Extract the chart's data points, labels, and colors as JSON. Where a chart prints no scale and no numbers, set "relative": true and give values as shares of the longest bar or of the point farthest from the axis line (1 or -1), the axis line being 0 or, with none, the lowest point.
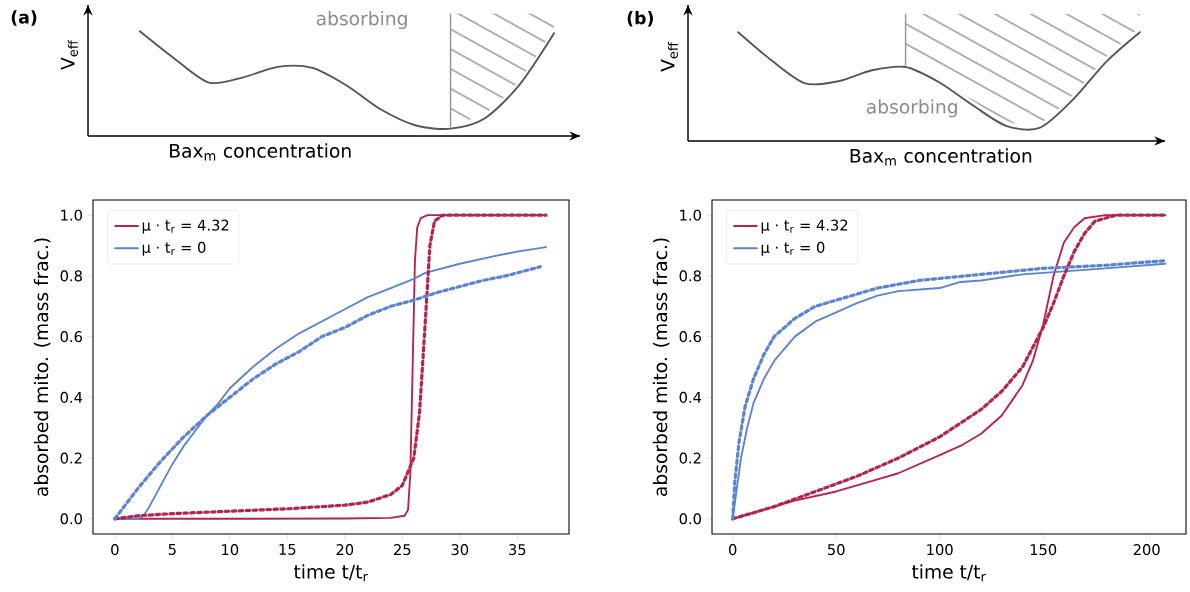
{
  "chart_data": [
    {
      "type": "line",
      "title": "(a)",
      "xlabel": "Bax$_{m}$ concentration",
      "ylabel": "V$_{eff}$",
      "relative": true,
      "annotations": [
        "absorbing"
      ],
      "categories": [
        null,
        null,
        null,
        null,
        null,
        null,
        null,
        null,
        null,
        null,
        null,
        null,
        null
      ],
      "series": [
        {
          "color": "#555555",
          "values": [
            1,
            0.74,
            0.51,
            0.56,
            0.66,
            0.65,
            0.48,
            0.25,
            0.1,
            0.07,
            0.17,
            0.49,
            0.98
          ]
        }
      ]
    },
    {
      "type": "line",
      "title": "(b)",
      "xlabel": "Bax$_{m}$ concentration",
      "ylabel": "V$_{eff}$",
      "relative": true,
      "annotations": [
        "absorbing"
      ],
      "categories": [
        null,
        null,
        null,
        null,
        null,
        null,
        null,
        null,
        null,
        null,
        null,
        null,
        null
      ],
      "series": [
        {
          "color": "#555555",
          "values": [
            1,
            0.74,
            0.53,
            0.55,
            0.65,
            0.68,
            0.54,
            0.33,
            0.14,
            0.12,
            0.38,
            0.73,
            1
          ]
        }
      ]
    },
    {
      "type": "line",
      "xlabel": "time  t/t$_{r}$",
      "ylabel": "absorbed mito. (mass frac.)",
      "legend": "top left",
      "xlim": [
        -1.9,
        39.5
      ],
      "ylim": [
        -0.05,
        1.05
      ],
      "xticks": [
        0,
        5,
        10,
        15,
        20,
        25,
        30,
        35
      ],
      "yticks": [
        {
          "value": 0,
          "label": "0.0"
        },
        {
          "value": 0.2,
          "label": "0.2"
        },
        {
          "value": 0.4,
          "label": "0.4"
        },
        {
          "value": 0.6,
          "label": "0.6"
        },
        {
          "value": 0.8,
          "label": "0.8"
        },
        {
          "value": 1,
          "label": "1.0"
        }
      ],
      "series": [
        {
          "name": "μ · t$_{r}$ = 4.32",
          "color": "#b5234f",
          "line_style": "solid",
          "x": [
            0,
            10,
            20,
            24,
            25.2,
            25.5,
            25.7,
            25.9,
            26.1,
            26.3,
            26.6,
            27.2,
            37.5
          ],
          "values": [
            0,
            0,
            0.001,
            0.003,
            0.01,
            0.03,
            0.15,
            0.5,
            0.85,
            0.96,
            0.99,
            1,
            1
          ]
        },
        {
          "name": "μ · t$_{r}$ = 0",
          "color": "#5b83d1",
          "line_style": "solid",
          "x": [
            0,
            2,
            2.5,
            3,
            4,
            5,
            6,
            7,
            8,
            9,
            10,
            12,
            14,
            16,
            18,
            20,
            22,
            24,
            26,
            27,
            30,
            33,
            35,
            37.5
          ],
          "values": [
            0,
            0,
            0.01,
            0.04,
            0.11,
            0.18,
            0.24,
            0.29,
            0.34,
            0.38,
            0.43,
            0.5,
            0.56,
            0.61,
            0.65,
            0.69,
            0.73,
            0.76,
            0.79,
            0.81,
            0.84,
            0.865,
            0.88,
            0.895
          ]
        },
        {
          "color": "#b5234f",
          "line_style": "dotted",
          "x": [
            0,
            2,
            5,
            10,
            15,
            20,
            22,
            24,
            25,
            26,
            26.5,
            27,
            27.4,
            27.8,
            28.5,
            37.5
          ],
          "values": [
            0,
            0.01,
            0.017,
            0.025,
            0.033,
            0.045,
            0.055,
            0.08,
            0.11,
            0.2,
            0.35,
            0.65,
            0.9,
            0.98,
            1,
            1
          ]
        },
        {
          "color": "#5b83d1",
          "line_style": "dotted",
          "x": [
            0,
            2,
            4,
            6,
            8,
            10,
            12,
            14,
            16,
            18,
            20,
            22,
            24,
            26,
            28,
            30,
            32,
            34,
            37
          ],
          "values": [
            0,
            0.1,
            0.19,
            0.27,
            0.34,
            0.4,
            0.46,
            0.51,
            0.55,
            0.6,
            0.63,
            0.67,
            0.7,
            0.72,
            0.745,
            0.765,
            0.785,
            0.8,
            0.83
          ]
        }
      ]
    },
    {
      "type": "line",
      "xlabel": "time  t/t$_{r}$",
      "ylabel": "absorbed mito. (mass frac.)",
      "legend": "top left",
      "xlim": [
        -10,
        219
      ],
      "ylim": [
        -0.05,
        1.05
      ],
      "xticks": [
        0,
        50,
        100,
        150,
        200
      ],
      "yticks": [
        {
          "value": 0,
          "label": "0.0"
        },
        {
          "value": 0.2,
          "label": "0.2"
        },
        {
          "value": 0.4,
          "label": "0.4"
        },
        {
          "value": 0.6,
          "label": "0.6"
        },
        {
          "value": 0.8,
          "label": "0.8"
        },
        {
          "value": 1,
          "label": "1.0"
        }
      ],
      "series": [
        {
          "name": "μ · t$_{r}$ = 4.32",
          "color": "#b5234f",
          "line_style": "solid",
          "x": [
            0,
            10,
            20,
            30,
            50,
            70,
            80,
            100,
            110,
            120,
            130,
            140,
            145,
            150,
            155,
            160,
            165,
            170,
            180,
            209
          ],
          "values": [
            0,
            0.02,
            0.04,
            0.06,
            0.09,
            0.13,
            0.15,
            0.21,
            0.24,
            0.28,
            0.34,
            0.44,
            0.52,
            0.64,
            0.8,
            0.91,
            0.96,
            0.99,
            1,
            1
          ]
        },
        {
          "name": "μ · t$_{r}$ = 0",
          "color": "#5b83d1",
          "line_style": "solid",
          "x": [
            0,
            2,
            4,
            7,
            10,
            15,
            20,
            30,
            40,
            50,
            60,
            70,
            80,
            100,
            110,
            120,
            140,
            160,
            180,
            209
          ],
          "values": [
            0,
            0.1,
            0.2,
            0.3,
            0.38,
            0.46,
            0.52,
            0.6,
            0.65,
            0.68,
            0.71,
            0.735,
            0.75,
            0.76,
            0.78,
            0.785,
            0.805,
            0.815,
            0.825,
            0.84
          ]
        },
        {
          "color": "#b5234f",
          "line_style": "dotted",
          "x": [
            0,
            20,
            40,
            60,
            80,
            100,
            120,
            130,
            140,
            150,
            155,
            160,
            165,
            170,
            175,
            185,
            209
          ],
          "values": [
            0,
            0.04,
            0.09,
            0.14,
            0.2,
            0.27,
            0.36,
            0.42,
            0.5,
            0.63,
            0.71,
            0.8,
            0.88,
            0.94,
            0.98,
            1,
            1
          ]
        },
        {
          "color": "#5b83d1",
          "line_style": "dotted",
          "x": [
            0,
            1,
            3,
            6,
            10,
            15,
            20,
            30,
            40,
            50,
            70,
            90,
            120,
            150,
            180,
            209
          ],
          "values": [
            0,
            0.12,
            0.25,
            0.37,
            0.46,
            0.54,
            0.6,
            0.66,
            0.7,
            0.72,
            0.76,
            0.785,
            0.805,
            0.825,
            0.835,
            0.85
          ]
        }
      ]
    }
  ]
}
